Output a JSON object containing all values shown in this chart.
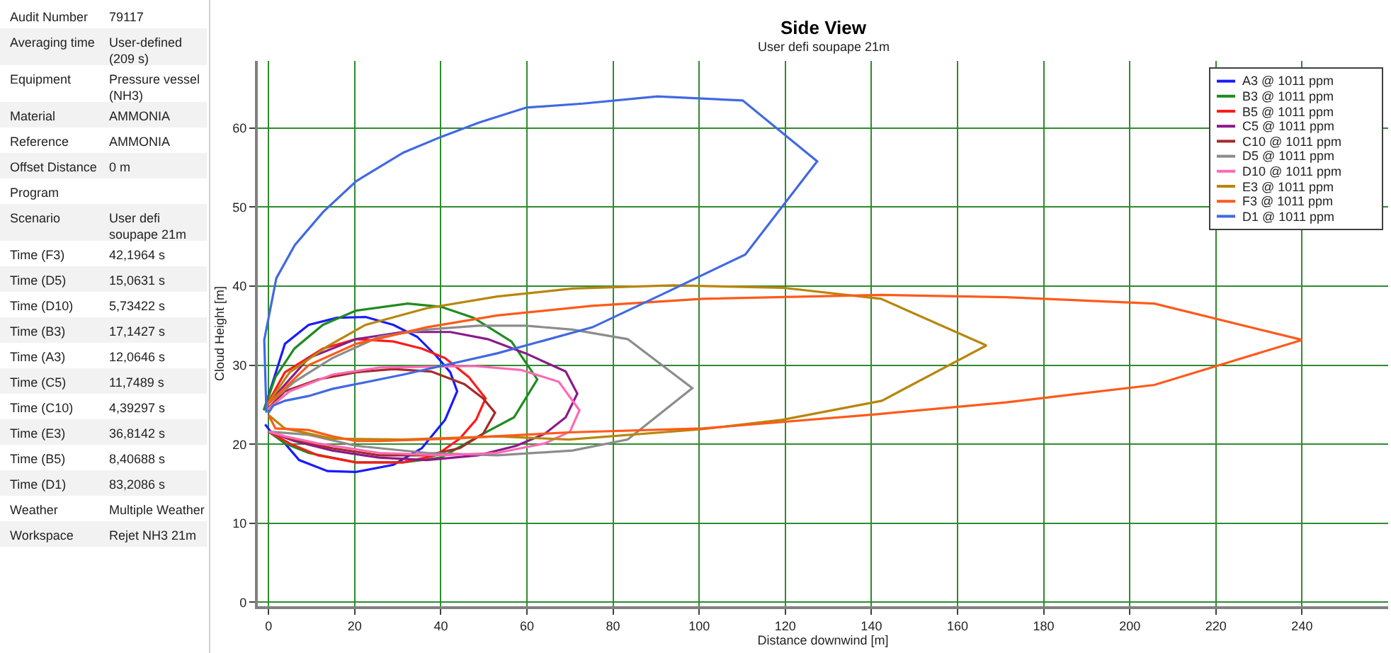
{
  "chart_data": [
    {
      "type": "other",
      "categories": [
        "Audit Number",
        "Averaging time",
        "Equipment",
        "Material",
        "Reference",
        "Offset Distance",
        "Program",
        "Scenario",
        "Time (F3)",
        "Time (D5)",
        "Time (D10)",
        "Time (B3)",
        "Time (A3)",
        "Time (C5)",
        "Time (C10)",
        "Time (E3)",
        "Time (B5)",
        "Time (D1)",
        "Weather",
        "Workspace"
      ],
      "value_labels": [
        "79117",
        "User-defined (209 s)",
        "Pressure vessel (NH3)",
        "AMMONIA",
        "AMMONIA",
        "0 m",
        null,
        "User defi soupape 21m",
        "42,1964 s",
        "15,0631 s",
        "5,73422 s",
        "17,1427 s",
        "12,0646 s",
        "11,7489 s",
        "4,39297 s",
        "36,8142 s",
        "8,40688 s",
        "83,2086 s",
        "Multiple Weather",
        "Rejet NH3 21m"
      ]
    },
    {
      "type": "line",
      "title": "Side View",
      "subtitle": "User defi soupape 21m",
      "xlabel": "Distance downwind [m]",
      "ylabel": "Cloud Height [m]",
      "xlim": [
        -2.5,
        260
      ],
      "xticks": [
        0,
        20,
        40,
        60,
        80,
        100,
        120,
        140,
        160,
        180,
        200,
        220,
        240
      ],
      "ylim": [
        -0.5,
        68.5
      ],
      "yticks": [
        0,
        10,
        20,
        30,
        40,
        50,
        60
      ],
      "grid": true,
      "legend": "top right",
      "marker": "none",
      "line_style": "solid",
      "series": [
        {
          "name": "A3 @ 1011 ppm",
          "color": "#1a1aff",
          "x": [
            -1.1,
            3.8,
            9.3,
            15.9,
            22.5,
            29,
            34.5,
            38.9,
            42.2,
            43.8,
            41,
            35.6,
            29,
            20.3,
            13.7,
            7.1,
            3.8,
            0.5,
            -0.8
          ],
          "values": [
            24.3,
            32.7,
            35.1,
            36,
            36.1,
            35.1,
            33.6,
            31.2,
            29.1,
            26.7,
            23.1,
            19.5,
            17.4,
            16.5,
            16.6,
            18,
            20.1,
            21.6,
            22.5
          ]
        },
        {
          "name": "B3 @ 1011 ppm",
          "color": "#1e8c1e",
          "x": [
            -1.1,
            1.6,
            6,
            12.6,
            20.3,
            32.3,
            40,
            47.6,
            56.4,
            62.4,
            57,
            48.7,
            40,
            31.2,
            20.3,
            9.3,
            3.8,
            0
          ],
          "values": [
            24.3,
            28.5,
            32.1,
            35.1,
            36.9,
            37.8,
            37.4,
            36,
            33,
            28.2,
            23.4,
            21,
            18.3,
            17.7,
            17.7,
            18.9,
            20.1,
            21.6
          ]
        },
        {
          "name": "B5 @ 1011 ppm",
          "color": "#ff1a1a",
          "x": [
            -0.5,
            3.8,
            12.6,
            20.3,
            29,
            35.6,
            41,
            46.5,
            50.4,
            48.2,
            44.4,
            38.9,
            31.2,
            20.3,
            11.5,
            4.9,
            0
          ],
          "values": [
            24.9,
            29.1,
            32.1,
            33.3,
            33,
            32.1,
            30.9,
            28.5,
            25.8,
            23.1,
            20.7,
            18.6,
            17.7,
            17.7,
            18.6,
            20.1,
            21.6
          ]
        },
        {
          "name": "C5 @ 1011 ppm",
          "color": "#8b1a8b",
          "x": [
            -0.5,
            9.3,
            20.3,
            31.2,
            42.2,
            50.9,
            59.7,
            69,
            71.7,
            69,
            64.1,
            57.5,
            48.7,
            36.7,
            25.7,
            14.8,
            6,
            0
          ],
          "values": [
            24.9,
            30.9,
            33.3,
            34.2,
            34.2,
            33.3,
            31.5,
            29.2,
            26.4,
            23.4,
            21.3,
            19.8,
            18.6,
            18,
            18.3,
            19.2,
            20.4,
            21.6
          ]
        },
        {
          "name": "C10 @ 1011 ppm",
          "color": "#a52a2a",
          "x": [
            -0.5,
            3.8,
            11.5,
            20.3,
            29,
            37.8,
            45.5,
            49.8,
            52.6,
            49.8,
            44.4,
            36.7,
            25.7,
            14.8,
            4.9,
            0
          ],
          "values": [
            24.3,
            26.7,
            28.2,
            29.1,
            29.5,
            29.2,
            27.6,
            25.8,
            24,
            21.3,
            19.5,
            18.6,
            18.6,
            19.5,
            20.7,
            21.6
          ]
        },
        {
          "name": "D5 @ 1011 ppm",
          "color": "#8c8c8c",
          "x": [
            -0.5,
            6,
            14.8,
            25.7,
            36.7,
            48.7,
            59.7,
            70.6,
            83.4,
            98.4,
            83.4,
            70.6,
            53.1,
            36.7,
            20.3,
            9.3,
            0
          ],
          "values": [
            24.9,
            27.9,
            30.9,
            33.6,
            34.5,
            35,
            35,
            34.5,
            33.3,
            27.1,
            20.6,
            19.2,
            18.6,
            18.9,
            19.8,
            21.2,
            21.6
          ]
        },
        {
          "name": "D10 @ 1011 ppm",
          "color": "#ff69b4",
          "x": [
            -0.5,
            4.9,
            14.8,
            25.7,
            36.7,
            47.6,
            58.6,
            67.4,
            72.2,
            70,
            64.1,
            53.1,
            40,
            25.7,
            11.5,
            3.8,
            0
          ],
          "values": [
            24.3,
            26.7,
            28.8,
            29.7,
            29.8,
            29.9,
            29.4,
            27.9,
            24.3,
            21.6,
            20.1,
            18.9,
            18.6,
            18.9,
            20.1,
            21,
            21.6
          ]
        },
        {
          "name": "E3 @ 1011 ppm",
          "color": "#b8860b",
          "x": [
            -0.5,
            4.9,
            13.7,
            22.5,
            36.7,
            53.1,
            70.6,
            94,
            119.4,
            142.2,
            166.7,
            142.4,
            119.4,
            100.7,
            69.7,
            53.1,
            31.2,
            14.8,
            3.8,
            0
          ],
          "values": [
            24.9,
            29.1,
            32.4,
            35.1,
            37.2,
            38.7,
            39.7,
            40.1,
            39.8,
            38.4,
            32.5,
            25.5,
            23.1,
            21.9,
            20.6,
            21,
            20.6,
            20.7,
            22,
            23.7
          ]
        },
        {
          "name": "F3 @ 1011 ppm",
          "color": "#ff5a1a",
          "x": [
            -0.5,
            9.3,
            20.3,
            36.7,
            53.1,
            75,
            100.9,
            142.4,
            171.3,
            205.7,
            240,
            205.7,
            171.3,
            141.3,
            100.9,
            69.7,
            42.2,
            25.7,
            20.3,
            14.8,
            9.3,
            1.6,
            0
          ],
          "values": [
            24.9,
            30,
            32.7,
            34.8,
            36.3,
            37.5,
            38.4,
            38.9,
            38.6,
            37.8,
            33.2,
            27.5,
            25.3,
            23.8,
            22,
            21.5,
            20.7,
            20.4,
            20.4,
            21,
            21.8,
            22,
            23.7
          ]
        },
        {
          "name": "D1 @ 1011 ppm",
          "color": "#4169e1",
          "x": [
            0,
            1.1,
            3.8,
            9.3,
            14.8,
            31.2,
            53.1,
            75.2,
            92.7,
            110.7,
            127.4,
            110.1,
            90.3,
            73,
            59.9,
            48.9,
            40.1,
            31.3,
            20.4,
            12.7,
            6.1,
            1.8,
            -1,
            -0.5
          ],
          "values": [
            24,
            24.9,
            25.5,
            26.1,
            27,
            28.8,
            31.5,
            34.8,
            39.3,
            44,
            55.8,
            63.5,
            64,
            63.1,
            62.6,
            60.7,
            58.9,
            56.9,
            53.3,
            49.4,
            45.2,
            41,
            33.2,
            24
          ]
        }
      ]
    }
  ]
}
